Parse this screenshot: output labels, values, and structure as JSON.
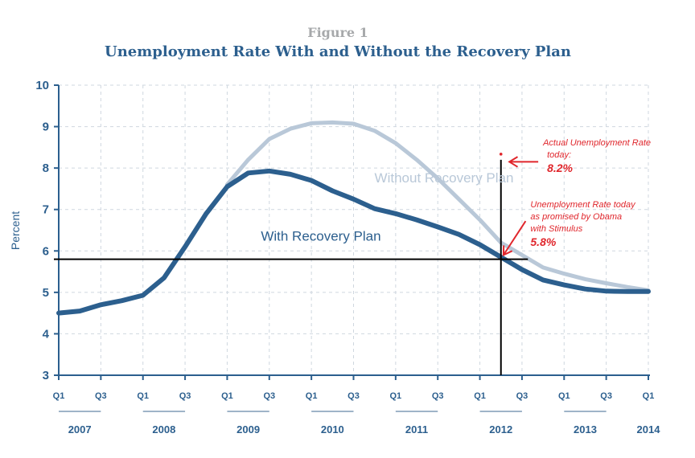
{
  "figure_label": "Figure 1",
  "chart_data": {
    "type": "line",
    "title": "Unemployment Rate With and Without the Recovery Plan",
    "ylabel": "Percent",
    "xlabel": "",
    "ylim": [
      3,
      10
    ],
    "y_ticks": [
      "3",
      "4",
      "5",
      "6",
      "7",
      "8",
      "9",
      "10"
    ],
    "x_range": [
      2007.0,
      2014.0
    ],
    "quarter_ticks": [
      {
        "label": "Q1",
        "x": 2007.0
      },
      {
        "label": "Q3",
        "x": 2007.5
      },
      {
        "label": "Q1",
        "x": 2008.0
      },
      {
        "label": "Q3",
        "x": 2008.5
      },
      {
        "label": "Q1",
        "x": 2009.0
      },
      {
        "label": "Q3",
        "x": 2009.5
      },
      {
        "label": "Q1",
        "x": 2010.0
      },
      {
        "label": "Q3",
        "x": 2010.5
      },
      {
        "label": "Q1",
        "x": 2011.0
      },
      {
        "label": "Q3",
        "x": 2011.5
      },
      {
        "label": "Q1",
        "x": 2012.0
      },
      {
        "label": "Q3",
        "x": 2012.5
      },
      {
        "label": "Q1",
        "x": 2013.0
      },
      {
        "label": "Q3",
        "x": 2013.5
      },
      {
        "label": "Q1",
        "x": 2014.0
      }
    ],
    "year_labels": [
      {
        "label": "2007",
        "from": 2007.0,
        "to": 2007.5
      },
      {
        "label": "2008",
        "from": 2008.0,
        "to": 2008.5
      },
      {
        "label": "2009",
        "from": 2009.0,
        "to": 2009.5
      },
      {
        "label": "2010",
        "from": 2010.0,
        "to": 2010.5
      },
      {
        "label": "2011",
        "from": 2011.0,
        "to": 2011.5
      },
      {
        "label": "2012",
        "from": 2012.0,
        "to": 2012.5
      },
      {
        "label": "2013",
        "from": 2013.0,
        "to": 2013.5
      },
      {
        "label": "2014",
        "from": 2014.0,
        "to": 2014.0
      }
    ],
    "grid": true,
    "series": [
      {
        "name": "Without Recovery Plan",
        "color": "#b9c8d8",
        "points": [
          [
            2009.0,
            7.6
          ],
          [
            2009.25,
            8.2
          ],
          [
            2009.5,
            8.7
          ],
          [
            2009.75,
            8.95
          ],
          [
            2010.0,
            9.08
          ],
          [
            2010.25,
            9.1
          ],
          [
            2010.5,
            9.07
          ],
          [
            2010.75,
            8.9
          ],
          [
            2011.0,
            8.6
          ],
          [
            2011.25,
            8.2
          ],
          [
            2011.5,
            7.75
          ],
          [
            2011.75,
            7.25
          ],
          [
            2012.0,
            6.75
          ],
          [
            2012.25,
            6.2
          ],
          [
            2012.5,
            5.9
          ],
          [
            2012.75,
            5.6
          ],
          [
            2013.0,
            5.45
          ],
          [
            2013.25,
            5.32
          ],
          [
            2013.5,
            5.22
          ],
          [
            2013.75,
            5.13
          ],
          [
            2014.0,
            5.05
          ]
        ]
      },
      {
        "name": "With Recovery Plan",
        "color": "#2c5f8e",
        "points": [
          [
            2007.0,
            4.5
          ],
          [
            2007.25,
            4.55
          ],
          [
            2007.5,
            4.7
          ],
          [
            2007.75,
            4.8
          ],
          [
            2008.0,
            4.93
          ],
          [
            2008.25,
            5.35
          ],
          [
            2008.5,
            6.1
          ],
          [
            2008.75,
            6.9
          ],
          [
            2009.0,
            7.55
          ],
          [
            2009.25,
            7.88
          ],
          [
            2009.5,
            7.93
          ],
          [
            2009.75,
            7.85
          ],
          [
            2010.0,
            7.7
          ],
          [
            2010.25,
            7.45
          ],
          [
            2010.5,
            7.25
          ],
          [
            2010.75,
            7.02
          ],
          [
            2011.0,
            6.9
          ],
          [
            2011.25,
            6.75
          ],
          [
            2011.5,
            6.58
          ],
          [
            2011.75,
            6.4
          ],
          [
            2012.0,
            6.15
          ],
          [
            2012.25,
            5.85
          ],
          [
            2012.5,
            5.55
          ],
          [
            2012.75,
            5.3
          ],
          [
            2013.0,
            5.18
          ],
          [
            2013.25,
            5.08
          ],
          [
            2013.5,
            5.03
          ],
          [
            2013.75,
            5.02
          ],
          [
            2014.0,
            5.02
          ]
        ]
      }
    ],
    "series_labels": [
      {
        "text": "Without Recovery Plan",
        "x": 2012.4,
        "y": 7.65,
        "anchor": "end",
        "color": "#b9c8d8"
      },
      {
        "text": "With Recovery Plan",
        "x": 2009.4,
        "y": 6.25,
        "color": "#2c5f8e"
      }
    ],
    "reference_lines": {
      "horizontal_y": 5.8,
      "horizontal_x_range": [
        2007.0,
        2012.57
      ],
      "vertical_x": 2012.25,
      "vertical_y_range": [
        3.0,
        8.2
      ]
    },
    "actual_point": {
      "x": 2012.25,
      "y": 8.2
    },
    "annotations": [
      {
        "lines": [
          "Actual Unemployment Rate",
          "today:"
        ],
        "value": "8.2%",
        "text_x": 2012.75,
        "text_y": 8.55,
        "arrow_from": [
          2012.75,
          8.15
        ],
        "arrow_to": [
          2012.35,
          8.15
        ]
      },
      {
        "lines": [
          "Unemployment Rate today",
          "as promised by Obama",
          "with Stimulus"
        ],
        "value": "5.8%",
        "text_x": 2012.6,
        "text_y": 7.05,
        "arrow_from": [
          2012.6,
          6.72
        ],
        "arrow_to": [
          2012.28,
          5.9
        ]
      }
    ],
    "colors": {
      "axis": "#2c5f8e",
      "grid": "#cfd7df",
      "reference": "#000000",
      "annotation": "#e0262c",
      "year_bracket": "#9fb4c8"
    }
  }
}
